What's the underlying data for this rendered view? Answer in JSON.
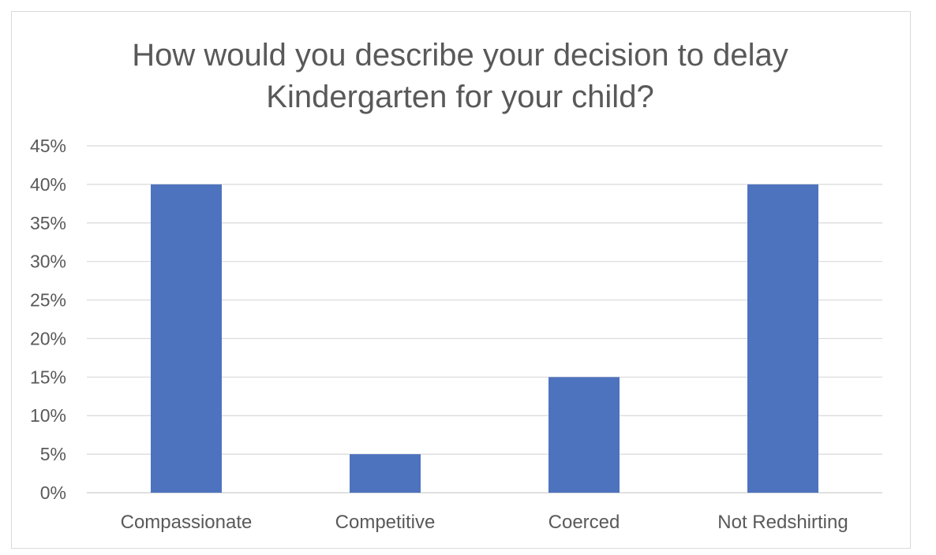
{
  "chart_data": {
    "type": "bar",
    "title": "How would you describe your decision to delay",
    "title_line2": "Kindergarten for your child?",
    "categories": [
      "Compassionate",
      "Competitive",
      "Coerced",
      "Not Redshirting"
    ],
    "values": [
      40,
      5,
      15,
      40
    ],
    "value_unit": "%",
    "ylim": [
      0,
      45
    ],
    "yticks": [
      "0%",
      "5%",
      "10%",
      "15%",
      "20%",
      "25%",
      "30%",
      "35%",
      "40%",
      "45%"
    ],
    "xlabel": "",
    "ylabel": "",
    "grid": true,
    "legend": "none",
    "bar_color": "#4e73be",
    "grid_color": "#d9d9d9"
  }
}
